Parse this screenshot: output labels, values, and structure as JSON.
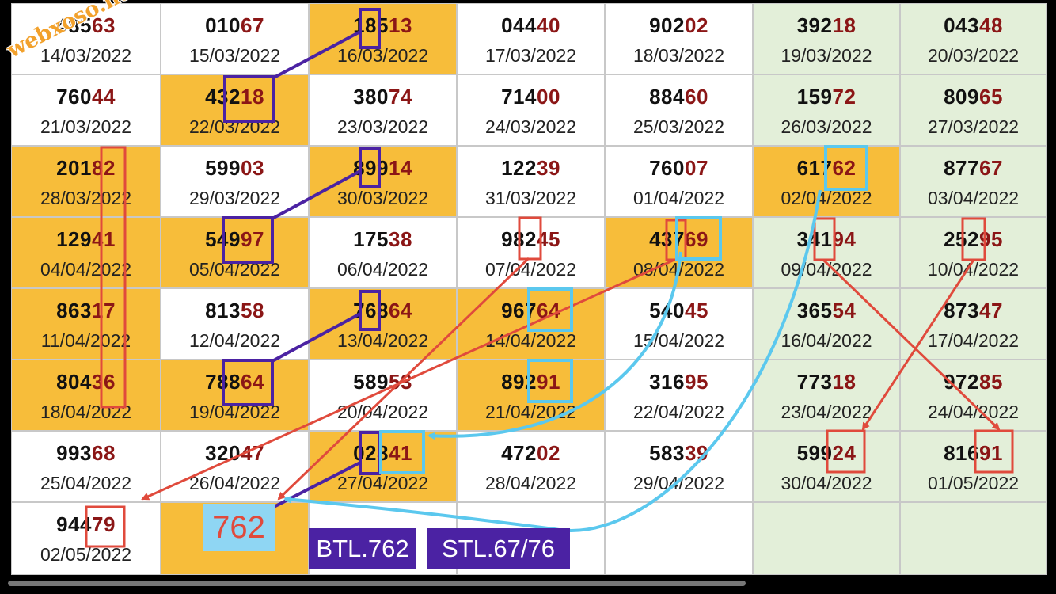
{
  "watermark": "webxoso.net",
  "prediction": "762",
  "labels": {
    "btl": "BTL.762",
    "stl": "STL.67/76"
  },
  "rows": [
    [
      {
        "a": "485",
        "b": "63",
        "date": "14/03/2022",
        "bg": "w"
      },
      {
        "a": "010",
        "b": "67",
        "date": "15/03/2022",
        "bg": "w"
      },
      {
        "a": "185",
        "b": "13",
        "date": "16/03/2022",
        "bg": "o"
      },
      {
        "a": "044",
        "b": "40",
        "date": "17/03/2022",
        "bg": "w"
      },
      {
        "a": "902",
        "b": "02",
        "date": "18/03/2022",
        "bg": "w"
      },
      {
        "a": "392",
        "b": "18",
        "date": "19/03/2022",
        "bg": "g"
      },
      {
        "a": "043",
        "b": "48",
        "date": "20/03/2022",
        "bg": "g"
      }
    ],
    [
      {
        "a": "760",
        "b": "44",
        "date": "21/03/2022",
        "bg": "w"
      },
      {
        "a": "432",
        "b": "18",
        "date": "22/03/2022",
        "bg": "o"
      },
      {
        "a": "380",
        "b": "74",
        "date": "23/03/2022",
        "bg": "w"
      },
      {
        "a": "714",
        "b": "00",
        "date": "24/03/2022",
        "bg": "w"
      },
      {
        "a": "884",
        "b": "60",
        "date": "25/03/2022",
        "bg": "w"
      },
      {
        "a": "159",
        "b": "72",
        "date": "26/03/2022",
        "bg": "g"
      },
      {
        "a": "809",
        "b": "65",
        "date": "27/03/2022",
        "bg": "g"
      }
    ],
    [
      {
        "a": "201",
        "b": "82",
        "date": "28/03/2022",
        "bg": "o"
      },
      {
        "a": "599",
        "b": "03",
        "date": "29/03/2022",
        "bg": "w"
      },
      {
        "a": "899",
        "b": "14",
        "date": "30/03/2022",
        "bg": "o"
      },
      {
        "a": "122",
        "b": "39",
        "date": "31/03/2022",
        "bg": "w"
      },
      {
        "a": "760",
        "b": "07",
        "date": "01/04/2022",
        "bg": "w"
      },
      {
        "a": "617",
        "b": "62",
        "date": "02/04/2022",
        "bg": "o"
      },
      {
        "a": "877",
        "b": "67",
        "date": "03/04/2022",
        "bg": "g"
      }
    ],
    [
      {
        "a": "129",
        "b": "41",
        "date": "04/04/2022",
        "bg": "o"
      },
      {
        "a": "549",
        "b": "97",
        "date": "05/04/2022",
        "bg": "o"
      },
      {
        "a": "175",
        "b": "38",
        "date": "06/04/2022",
        "bg": "w"
      },
      {
        "a": "982",
        "b": "45",
        "date": "07/04/2022",
        "bg": "w"
      },
      {
        "a": "437",
        "b": "69",
        "date": "08/04/2022",
        "bg": "o"
      },
      {
        "a": "341",
        "b": "94",
        "date": "09/04/2022",
        "bg": "g"
      },
      {
        "a": "252",
        "b": "95",
        "date": "10/04/2022",
        "bg": "g"
      }
    ],
    [
      {
        "a": "863",
        "b": "17",
        "date": "11/04/2022",
        "bg": "o"
      },
      {
        "a": "813",
        "b": "58",
        "date": "12/04/2022",
        "bg": "w"
      },
      {
        "a": "768",
        "b": "64",
        "date": "13/04/2022",
        "bg": "o"
      },
      {
        "a": "967",
        "b": "64",
        "date": "14/04/2022",
        "bg": "o"
      },
      {
        "a": "540",
        "b": "45",
        "date": "15/04/2022",
        "bg": "w"
      },
      {
        "a": "365",
        "b": "54",
        "date": "16/04/2022",
        "bg": "g"
      },
      {
        "a": "873",
        "b": "47",
        "date": "17/04/2022",
        "bg": "g"
      }
    ],
    [
      {
        "a": "804",
        "b": "36",
        "date": "18/04/2022",
        "bg": "o"
      },
      {
        "a": "788",
        "b": "64",
        "date": "19/04/2022",
        "bg": "o"
      },
      {
        "a": "589",
        "b": "53",
        "date": "20/04/2022",
        "bg": "w"
      },
      {
        "a": "892",
        "b": "91",
        "date": "21/04/2022",
        "bg": "o"
      },
      {
        "a": "316",
        "b": "95",
        "date": "22/04/2022",
        "bg": "w"
      },
      {
        "a": "773",
        "b": "18",
        "date": "23/04/2022",
        "bg": "g"
      },
      {
        "a": "972",
        "b": "85",
        "date": "24/04/2022",
        "bg": "g"
      }
    ],
    [
      {
        "a": "993",
        "b": "68",
        "date": "25/04/2022",
        "bg": "w"
      },
      {
        "a": "320",
        "b": "47",
        "date": "26/04/2022",
        "bg": "w"
      },
      {
        "a": "028",
        "b": "41",
        "date": "27/04/2022",
        "bg": "o"
      },
      {
        "a": "472",
        "b": "02",
        "date": "28/04/2022",
        "bg": "w"
      },
      {
        "a": "583",
        "b": "39",
        "date": "29/04/2022",
        "bg": "w"
      },
      {
        "a": "599",
        "b": "24",
        "date": "30/04/2022",
        "bg": "g"
      },
      {
        "a": "816",
        "b": "91",
        "date": "01/05/2022",
        "bg": "g"
      }
    ],
    [
      {
        "a": "944",
        "b": "79",
        "date": "02/05/2022",
        "bg": "w"
      },
      {
        "a": "",
        "b": "",
        "date": "",
        "bg": "o"
      },
      {
        "a": "",
        "b": "",
        "date": "",
        "bg": "w"
      },
      {
        "a": "",
        "b": "",
        "date": "",
        "bg": "w"
      },
      {
        "a": "",
        "b": "",
        "date": "",
        "bg": "w"
      },
      {
        "a": "",
        "b": "",
        "date": "",
        "bg": "g"
      },
      {
        "a": "",
        "b": "",
        "date": "",
        "bg": "g"
      }
    ]
  ],
  "colors": {
    "orange": "#f7bd3a",
    "green": "#e3efd9",
    "purple": "#4b22a3",
    "red": "#e04a3c",
    "blue": "#5bc8ee",
    "tail": "#8b1616"
  }
}
